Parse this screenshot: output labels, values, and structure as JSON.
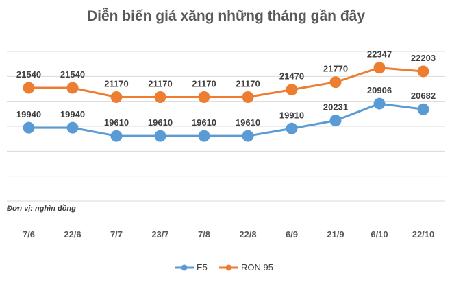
{
  "chart_data": {
    "type": "line",
    "title": "Diễn biến giá xăng những tháng gần đây",
    "unit_note": "Đơn vị: nghìn đồng",
    "categories": [
      "7/6",
      "22/6",
      "7/7",
      "23/7",
      "7/8",
      "22/8",
      "6/9",
      "21/9",
      "6/10",
      "22/10"
    ],
    "series": [
      {
        "name": "E5",
        "color": "#5B9BD5",
        "values": [
          19940,
          19940,
          19610,
          19610,
          19610,
          19610,
          19910,
          20231,
          20906,
          20682
        ]
      },
      {
        "name": "RON 95",
        "color": "#ED7D31",
        "values": [
          21540,
          21540,
          21170,
          21170,
          21170,
          21170,
          21470,
          21770,
          22347,
          22203
        ]
      }
    ],
    "ylim": [
      17000,
      23000
    ],
    "grid": true,
    "legend": "bottom",
    "y_axis_labels_shown": false
  }
}
